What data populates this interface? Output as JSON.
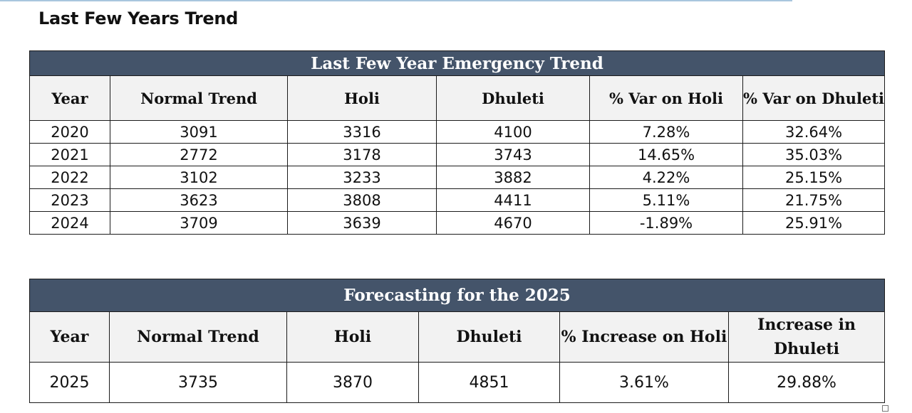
{
  "page": {
    "heading": "Last Few Years Trend"
  },
  "trend_table": {
    "title": "Last Few Year Emergency Trend",
    "headers": [
      "Year",
      "Normal Trend",
      "Holi",
      "Dhuleti",
      "% Var on Holi",
      "% Var on Dhuleti"
    ],
    "rows": [
      [
        "2020",
        "3091",
        "3316",
        "4100",
        "7.28%",
        "32.64%"
      ],
      [
        "2021",
        "2772",
        "3178",
        "3743",
        "14.65%",
        "35.03%"
      ],
      [
        "2022",
        "3102",
        "3233",
        "3882",
        "4.22%",
        "25.15%"
      ],
      [
        "2023",
        "3623",
        "3808",
        "4411",
        "5.11%",
        "21.75%"
      ],
      [
        "2024",
        "3709",
        "3639",
        "4670",
        "-1.89%",
        "25.91%"
      ]
    ]
  },
  "forecast_table": {
    "title": "Forecasting for the 2025",
    "headers": [
      "Year",
      "Normal Trend",
      "Holi",
      "Dhuleti",
      "% Increase on Holi",
      "Increase in Dhuleti"
    ],
    "rows": [
      [
        "2025",
        "3735",
        "3870",
        "4851",
        "3.61%",
        "29.88%"
      ]
    ]
  },
  "colors": {
    "title_bar": "#44546a",
    "header_bg": "#f2f2f2",
    "border": "#1b1b1b"
  }
}
